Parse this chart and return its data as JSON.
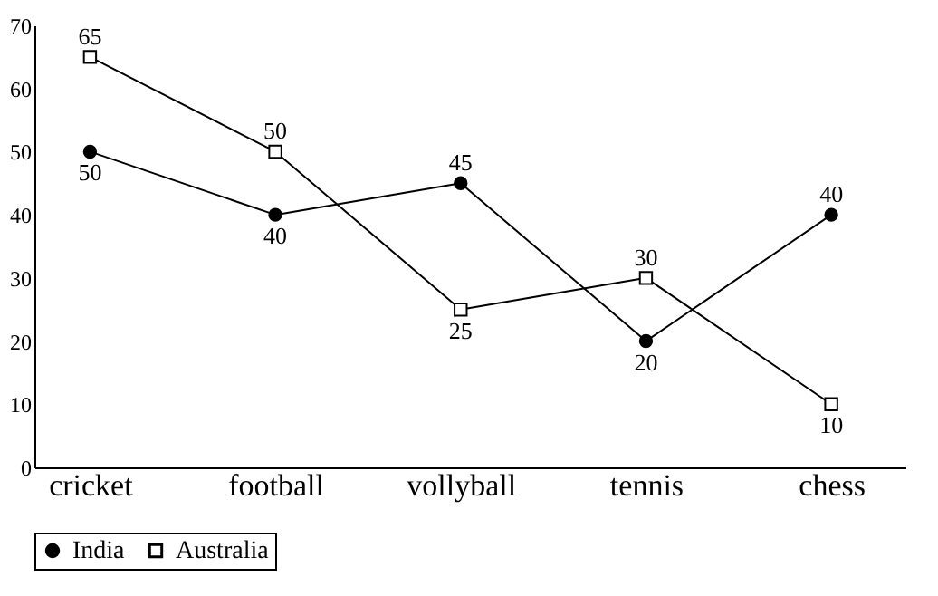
{
  "chart_data": {
    "type": "line",
    "categories": [
      "cricket",
      "football",
      "vollyball",
      "tennis",
      "chess"
    ],
    "series": [
      {
        "name": "India",
        "color": "#000000",
        "marker": "circle",
        "values": [
          50,
          40,
          45,
          20,
          40
        ]
      },
      {
        "name": "Australia",
        "color": "#000000",
        "marker": "square",
        "values": [
          65,
          50,
          25,
          30,
          10
        ]
      }
    ],
    "ylim": [
      0,
      70
    ],
    "yticks": [
      0,
      10,
      20,
      30,
      40,
      50,
      60,
      70
    ],
    "grid": false,
    "legend": "bottom left",
    "data_labels": true
  }
}
